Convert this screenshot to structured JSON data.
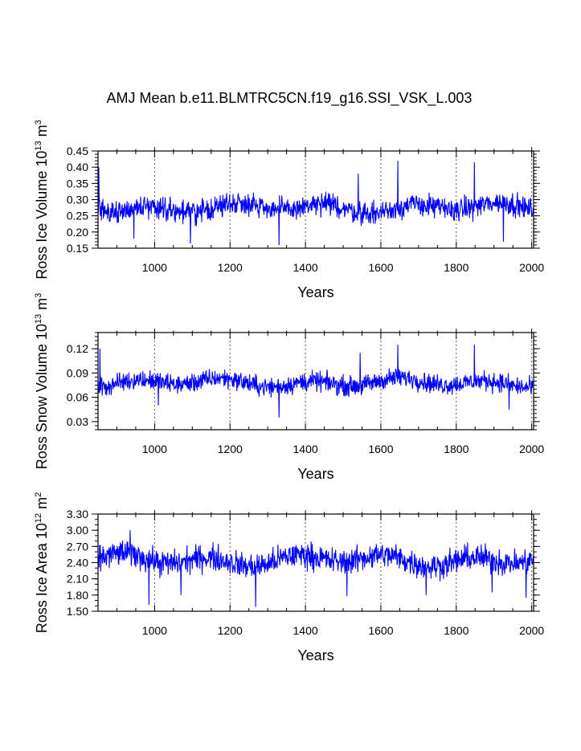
{
  "figure_title": "AMJ Mean b.e11.BLMTRC5CN.f19_g16.SSI_VSK_L.003",
  "colors": {
    "line": "#0000ff",
    "axis": "#000000",
    "ref_line": "#555555"
  },
  "chart_data": [
    {
      "type": "line",
      "series_name": "Ross Ice Volume",
      "ylabel_parts": {
        "pre": "Ross Ice Volume 10",
        "exp": "13",
        "unit": " m",
        "unit_exp": "3"
      },
      "xlabel": "Years",
      "xlim": [
        850,
        2005
      ],
      "xticks": [
        1000,
        1200,
        1400,
        1600,
        1800,
        2000
      ],
      "xtick_labels": [
        "1000",
        "1200",
        "1400",
        "1600",
        "1800",
        "2000"
      ],
      "ylim": [
        0.15,
        0.45
      ],
      "yticks": [
        0.15,
        0.2,
        0.25,
        0.3,
        0.35,
        0.4,
        0.45
      ],
      "ytick_labels": [
        "0.15",
        "0.20",
        "0.25",
        "0.30",
        "0.35",
        "0.40",
        "0.45"
      ],
      "yminor": 0.01,
      "ref_lines_x": [
        1000,
        1200,
        1400,
        1600,
        1800,
        2000
      ],
      "mean": 0.275,
      "amplitude": 0.032,
      "spread": 0.011,
      "spikes": [
        [
          852,
          0.4
        ],
        [
          945,
          0.18
        ],
        [
          1095,
          0.165
        ],
        [
          1330,
          0.16
        ],
        [
          1540,
          0.38
        ],
        [
          1645,
          0.42
        ],
        [
          1848,
          0.415
        ],
        [
          1925,
          0.17
        ]
      ]
    },
    {
      "type": "line",
      "series_name": "Ross Snow Volume",
      "ylabel_parts": {
        "pre": "Ross Snow Volume 10",
        "exp": "13",
        "unit": " m",
        "unit_exp": "3"
      },
      "xlabel": "Years",
      "xlim": [
        850,
        2005
      ],
      "xticks": [
        1000,
        1200,
        1400,
        1600,
        1800,
        2000
      ],
      "xtick_labels": [
        "1000",
        "1200",
        "1400",
        "1600",
        "1800",
        "2000"
      ],
      "ylim": [
        0.02,
        0.14
      ],
      "yticks": [
        0.03,
        0.06,
        0.09,
        0.12
      ],
      "ytick_labels": [
        "0.03",
        "0.06",
        "0.09",
        "0.12"
      ],
      "yminor": 0.005,
      "ref_lines_x": [
        1000,
        1200,
        1400,
        1600,
        1800,
        2000
      ],
      "mean": 0.078,
      "amplitude": 0.011,
      "spread": 0.004,
      "spikes": [
        [
          855,
          0.12
        ],
        [
          1010,
          0.05
        ],
        [
          1330,
          0.035
        ],
        [
          1545,
          0.115
        ],
        [
          1645,
          0.125
        ],
        [
          1848,
          0.125
        ],
        [
          1940,
          0.045
        ]
      ]
    },
    {
      "type": "line",
      "series_name": "Ross Ice Area",
      "ylabel_parts": {
        "pre": "Ross Ice Area 10",
        "exp": "12",
        "unit": " m",
        "unit_exp": "2"
      },
      "xlabel": "Years",
      "xlim": [
        850,
        2005
      ],
      "xticks": [
        1000,
        1200,
        1400,
        1600,
        1800,
        2000
      ],
      "xtick_labels": [
        "1000",
        "1200",
        "1400",
        "1600",
        "1800",
        "2000"
      ],
      "ylim": [
        1.5,
        3.3
      ],
      "yticks": [
        1.5,
        1.8,
        2.1,
        2.4,
        2.7,
        3.0,
        3.3
      ],
      "ytick_labels": [
        "1.50",
        "1.80",
        "2.10",
        "2.40",
        "2.70",
        "3.00",
        "3.30"
      ],
      "yminor": 0.1,
      "ref_lines_x": [
        1000,
        1200,
        1400,
        1600,
        1800,
        2000
      ],
      "mean": 2.45,
      "amplitude": 0.22,
      "spread": 0.08,
      "spikes": [
        [
          935,
          3.0
        ],
        [
          985,
          1.62
        ],
        [
          1070,
          1.8
        ],
        [
          1268,
          1.58
        ],
        [
          1510,
          1.78
        ],
        [
          1720,
          1.8
        ],
        [
          1895,
          1.85
        ],
        [
          1985,
          1.75
        ]
      ]
    }
  ]
}
